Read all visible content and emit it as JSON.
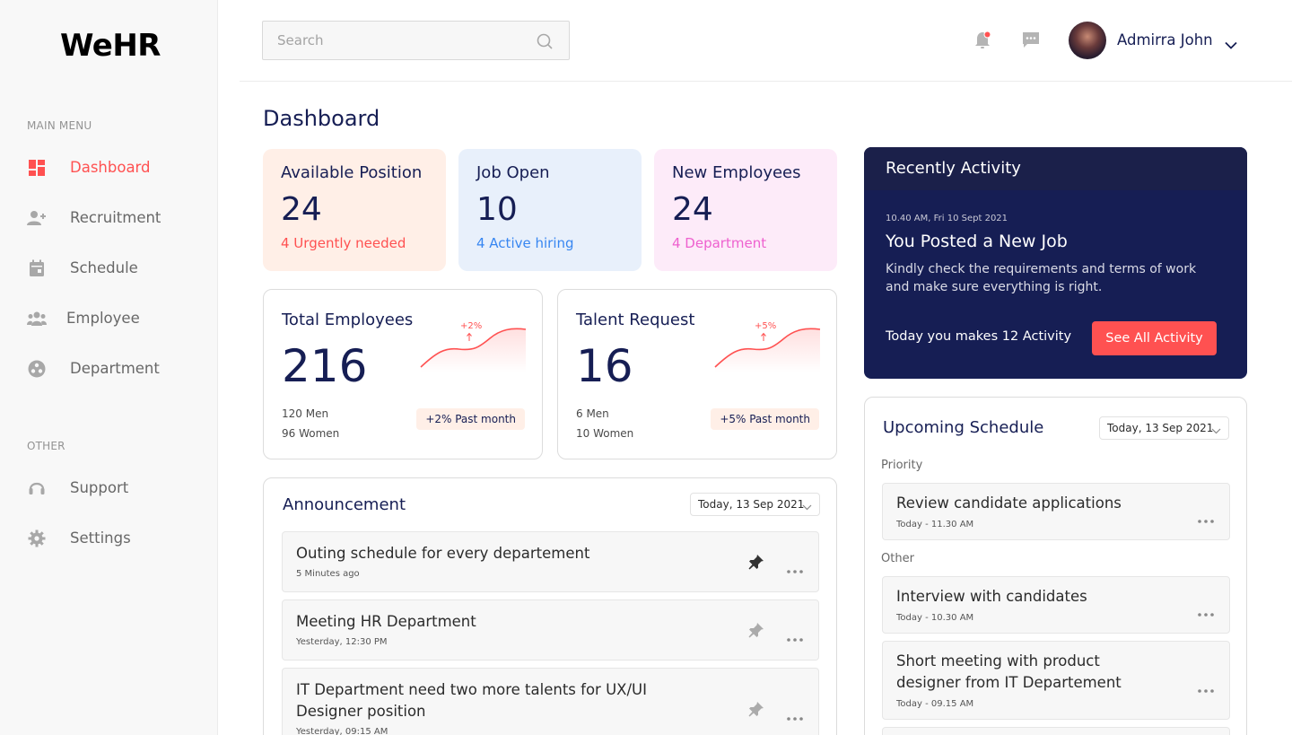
{
  "app": {
    "logo": "WeHR"
  },
  "sidebar": {
    "main_heading": "MAIN MENU",
    "main_items": [
      {
        "label": "Dashboard",
        "icon": "dashboard-icon",
        "active": true
      },
      {
        "label": "Recruitment",
        "icon": "add-user-icon"
      },
      {
        "label": "Schedule",
        "icon": "calendar-icon"
      },
      {
        "label": "Employee",
        "icon": "people-icon"
      },
      {
        "label": "Department",
        "icon": "department-icon"
      }
    ],
    "other_heading": "OTHER",
    "other_items": [
      {
        "label": "Support",
        "icon": "headset-icon"
      },
      {
        "label": "Settings",
        "icon": "gear-icon"
      }
    ]
  },
  "header": {
    "search_placeholder": "Search",
    "user_name": "Admirra John"
  },
  "page": {
    "title": "Dashboard"
  },
  "stats": [
    {
      "title": "Available Position",
      "value": "24",
      "sub": "4 Urgently needed",
      "bg": "#ffefe7",
      "accent": "#ff5151"
    },
    {
      "title": "Job Open",
      "value": "10",
      "sub": "4 Active hiring",
      "bg": "#e8f0fb",
      "accent": "#3786f1"
    },
    {
      "title": "New Employees",
      "value": "24",
      "sub": "4 Department",
      "bg": "#fdebf9",
      "accent": "#ee61cf"
    }
  ],
  "metrics": [
    {
      "title": "Total Employees",
      "value": "216",
      "line1": "120 Men",
      "line2": "96 Women",
      "badge": "+2% Past month",
      "trend": "+2%"
    },
    {
      "title": "Talent Request",
      "value": "16",
      "line1": "6 Men",
      "line2": "10 Women",
      "badge": "+5% Past month",
      "trend": "+5%"
    }
  ],
  "announcement": {
    "title": "Announcement",
    "date": "Today, 13 Sep 2021",
    "items": [
      {
        "title": "Outing schedule for every departement",
        "time": "5 Minutes ago",
        "pinned": true
      },
      {
        "title": "Meeting HR Department",
        "time": "Yesterday, 12:30 PM",
        "pinned": false
      },
      {
        "title": "IT Department need two more talents for UX/UI Designer position",
        "time": "Yesterday, 09:15 AM",
        "pinned": false
      }
    ]
  },
  "activity": {
    "title": "Recently Activity",
    "time": "10.40 AM, Fri 10 Sept 2021",
    "headline": "You Posted a New Job",
    "description": "Kindly check the requirements and terms of work and make sure everything is right.",
    "count_text": "Today you makes 12 Activity",
    "button": "See All Activity"
  },
  "schedule": {
    "title": "Upcoming Schedule",
    "date": "Today, 13 Sep 2021",
    "priority_label": "Priority",
    "other_label": "Other",
    "items": [
      {
        "title": "Review candidate applications",
        "time": "Today - 11.30 AM"
      },
      {
        "title": "Interview with candidates",
        "time": "Today - 10.30 AM"
      },
      {
        "title": "Short meeting with product designer from IT Departement",
        "time": "Today - 09.15 AM"
      }
    ]
  },
  "colors": {
    "navy": "#161e54",
    "red": "#ff5151",
    "sidebar_bg": "#f8f8f8"
  }
}
